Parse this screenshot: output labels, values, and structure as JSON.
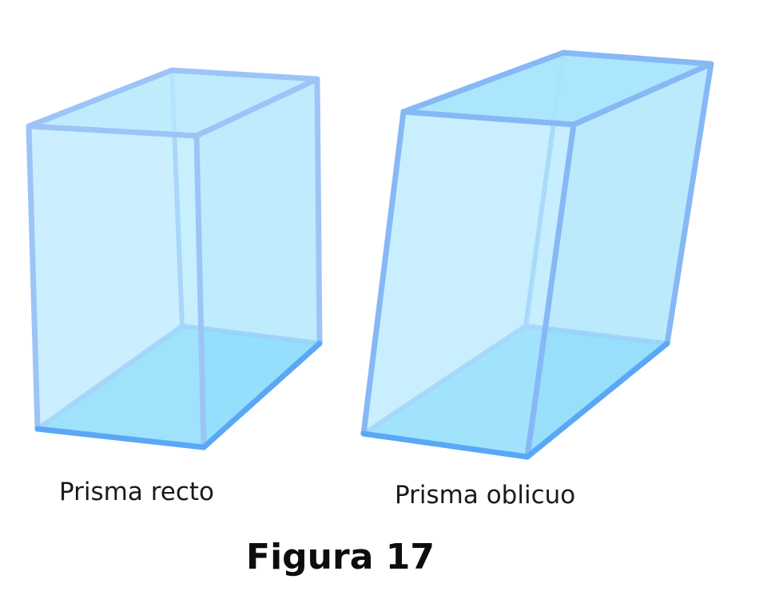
{
  "prisms": {
    "right": {
      "label": "Prisma recto"
    },
    "oblique": {
      "label": "Prisma oblicuo"
    }
  },
  "caption": "Figura 17",
  "colors": {
    "face": "#b9eafd",
    "base": "#6fd6fb",
    "edge": "#8fbff7",
    "edge_front": "#5aa8f5",
    "text": "#1a1a1a"
  }
}
